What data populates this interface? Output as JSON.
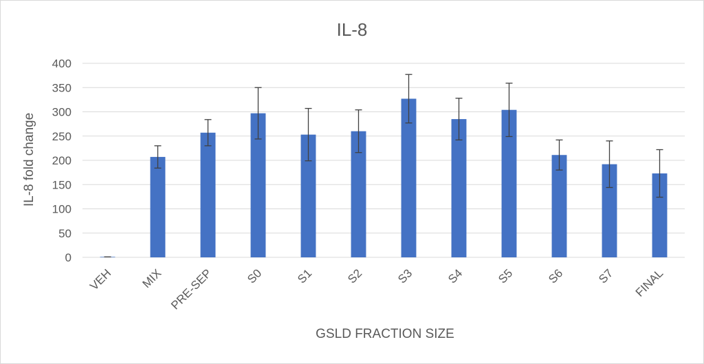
{
  "chart_data": {
    "type": "bar",
    "title": "IL-8",
    "xlabel": "GSLD FRACTION SIZE",
    "ylabel": "IL-8 fold change",
    "categories": [
      "VEH",
      "MIX",
      "PRE-SEP",
      "S0",
      "S1",
      "S2",
      "S3",
      "S4",
      "S5",
      "S6",
      "S7",
      "FINAL"
    ],
    "values": [
      1,
      207,
      257,
      297,
      253,
      260,
      327,
      285,
      304,
      211,
      192,
      173
    ],
    "error": [
      0,
      23,
      27,
      53,
      54,
      44,
      50,
      43,
      55,
      31,
      48,
      49
    ],
    "ylim": [
      0,
      400
    ],
    "yticks": [
      0,
      50,
      100,
      150,
      200,
      250,
      300,
      350,
      400
    ],
    "grid": true,
    "legend": "none",
    "bar_color": "#4472c4"
  }
}
